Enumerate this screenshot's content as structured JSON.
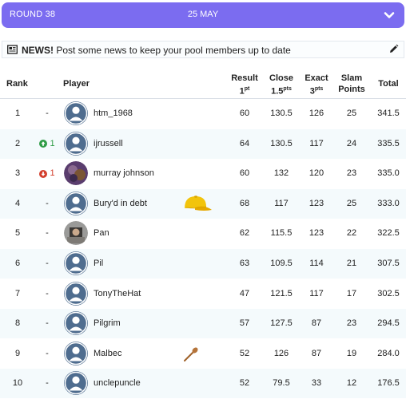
{
  "round": {
    "label": "ROUND 38",
    "date": "25 MAY"
  },
  "news": {
    "strong": "NEWS!",
    "text": " Post some news to keep your pool members up to date"
  },
  "headers": {
    "rank": "Rank",
    "player": "Player",
    "result": "Result",
    "result_sub": "1",
    "result_pts": "pt",
    "close": "Close",
    "close_sub": "1.5",
    "close_pts": "pts",
    "exact": "Exact",
    "exact_sub": "3",
    "exact_pts": "pts",
    "slam": "Slam",
    "slam_sub": "Points",
    "total": "Total"
  },
  "rows": [
    {
      "rank": "1",
      "move": "-",
      "name": "htm_1968",
      "result": "60",
      "close": "130.5",
      "exact": "126",
      "slam": "25",
      "total": "341.5"
    },
    {
      "rank": "2",
      "move": "1",
      "name": "ijrussell",
      "result": "64",
      "close": "130.5",
      "exact": "117",
      "slam": "24",
      "total": "335.5"
    },
    {
      "rank": "3",
      "move": "1",
      "name": "murray johnson",
      "result": "60",
      "close": "132",
      "exact": "120",
      "slam": "23",
      "total": "335.0"
    },
    {
      "rank": "4",
      "move": "-",
      "name": "Bury'd in debt",
      "result": "68",
      "close": "117",
      "exact": "123",
      "slam": "25",
      "total": "333.0"
    },
    {
      "rank": "5",
      "move": "-",
      "name": "Pan",
      "result": "62",
      "close": "115.5",
      "exact": "123",
      "slam": "22",
      "total": "322.5"
    },
    {
      "rank": "6",
      "move": "-",
      "name": "Pil",
      "result": "63",
      "close": "109.5",
      "exact": "114",
      "slam": "21",
      "total": "307.5"
    },
    {
      "rank": "7",
      "move": "-",
      "name": "TonyTheHat",
      "result": "47",
      "close": "121.5",
      "exact": "117",
      "slam": "17",
      "total": "302.5"
    },
    {
      "rank": "8",
      "move": "-",
      "name": "Pilgrim",
      "result": "57",
      "close": "127.5",
      "exact": "87",
      "slam": "23",
      "total": "294.5"
    },
    {
      "rank": "9",
      "move": "-",
      "name": "Malbec",
      "result": "52",
      "close": "126",
      "exact": "87",
      "slam": "19",
      "total": "284.0"
    },
    {
      "rank": "10",
      "move": "-",
      "name": "unclepuncle",
      "result": "52",
      "close": "79.5",
      "exact": "33",
      "slam": "12",
      "total": "176.5"
    }
  ],
  "colors": {
    "accent": "#7b6cf0",
    "up": "#2e9b45",
    "down": "#d33d2b",
    "avatar": "#4f6d8f"
  },
  "icons": {
    "round_toggle": "chevron-down-icon",
    "news": "newspaper-icon",
    "edit": "pencil-icon",
    "up": "arrow-up-circle-icon",
    "down": "arrow-down-circle-icon",
    "cap": "yellow-cap-icon",
    "spoon": "wooden-spoon-icon"
  }
}
